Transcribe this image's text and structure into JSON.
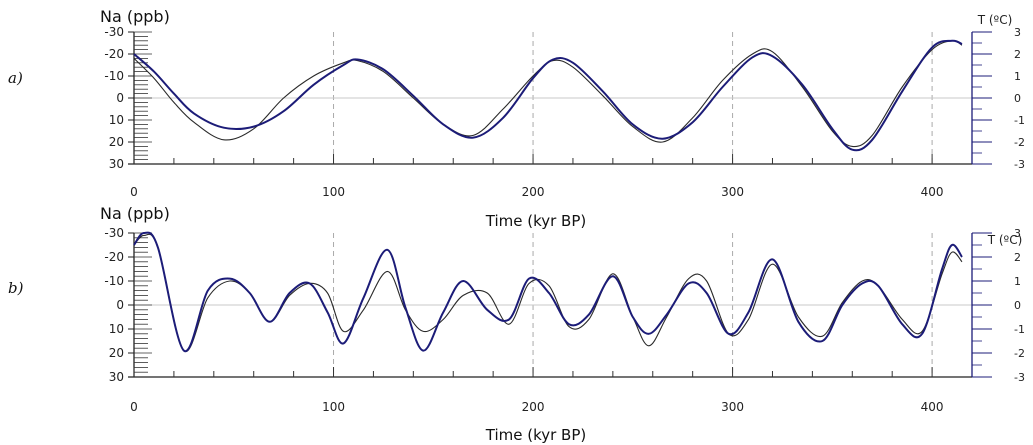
{
  "chart_data": [
    {
      "type": "line",
      "panel_label": "a)",
      "xlabel": "Time (kyr BP)",
      "ylabel_left": "Na (ppb)",
      "ylabel_right": "T (ºC)",
      "xlim": [
        0,
        420
      ],
      "ylim_left": [
        30,
        -30
      ],
      "ylim_right": [
        -3,
        3
      ],
      "left_ticks": [
        "-30",
        "-20",
        "-10",
        "0",
        "10",
        "20",
        "30"
      ],
      "right_ticks": [
        "3",
        "2",
        "1",
        "0",
        "-1",
        "-2",
        "-3"
      ],
      "x_ticks": [
        "0",
        "100",
        "200",
        "300",
        "400"
      ],
      "colors": {
        "na": "#2a2a2a",
        "temp": "#1c1c78",
        "grid": "#aaaaaa"
      },
      "series": [
        {
          "axis": "left",
          "color": "#2a2a2a",
          "x": [
            0,
            10,
            20,
            30,
            45,
            60,
            75,
            90,
            105,
            112,
            125,
            140,
            155,
            170,
            185,
            200,
            210,
            220,
            235,
            250,
            265,
            280,
            295,
            310,
            320,
            335,
            350,
            360,
            370,
            385,
            400,
            410,
            415
          ],
          "y": [
            -18,
            -9,
            2,
            11,
            19,
            14,
            0,
            -10,
            -16,
            -17,
            -12,
            0,
            12,
            17,
            5,
            -10,
            -17,
            -14,
            -1,
            13,
            20,
            9,
            -8,
            -20,
            -21,
            -5,
            15,
            22,
            17,
            -5,
            -22,
            -26,
            -24
          ]
        },
        {
          "axis": "right",
          "color": "#1c1c78",
          "x": [
            0,
            10,
            20,
            30,
            45,
            60,
            75,
            90,
            105,
            112,
            125,
            140,
            155,
            170,
            185,
            200,
            210,
            220,
            235,
            250,
            265,
            280,
            295,
            310,
            320,
            335,
            350,
            360,
            370,
            385,
            400,
            410,
            415
          ],
          "y": [
            2.0,
            1.2,
            0.2,
            -0.7,
            -1.35,
            -1.3,
            -0.6,
            0.6,
            1.5,
            1.75,
            1.3,
            0.1,
            -1.2,
            -1.8,
            -0.9,
            0.9,
            1.75,
            1.6,
            0.3,
            -1.2,
            -1.85,
            -1.1,
            0.5,
            1.85,
            1.9,
            0.6,
            -1.4,
            -2.35,
            -1.9,
            0.3,
            2.3,
            2.6,
            2.45
          ]
        }
      ]
    },
    {
      "type": "line",
      "panel_label": "b)",
      "xlabel": "Time (kyr BP)",
      "ylabel_left": "Na (ppb)",
      "ylabel_right": "T (ºC)",
      "xlim": [
        0,
        420
      ],
      "ylim_left": [
        30,
        -30
      ],
      "ylim_right": [
        -3,
        3
      ],
      "left_ticks": [
        "-30",
        "-20",
        "-10",
        "0",
        "10",
        "20",
        "30"
      ],
      "right_ticks": [
        "3",
        "2",
        "1",
        "0",
        "-1",
        "-2",
        "-3"
      ],
      "x_ticks": [
        "0",
        "100",
        "200",
        "300",
        "400"
      ],
      "colors": {
        "na": "#2a2a2a",
        "temp": "#1c1c78",
        "grid": "#aaaaaa"
      },
      "series": [
        {
          "axis": "left",
          "color": "#2a2a2a",
          "x": [
            0,
            5,
            12,
            25,
            37,
            48,
            58,
            68,
            78,
            88,
            97,
            105,
            115,
            127,
            136,
            145,
            155,
            165,
            177,
            188,
            198,
            208,
            218,
            228,
            240,
            250,
            258,
            267,
            278,
            287,
            298,
            308,
            320,
            333,
            345,
            355,
            365,
            373,
            385,
            395,
            405,
            410,
            415
          ],
          "y": [
            -25,
            -29,
            -24,
            19,
            -3,
            -10,
            -5,
            7,
            -4,
            -9,
            -5,
            11,
            2,
            -14,
            2,
            11,
            6,
            -4,
            -5,
            8,
            -9,
            -8,
            9,
            6,
            -13,
            5,
            17,
            5,
            -11,
            -10,
            12,
            6,
            -17,
            5,
            13,
            -1,
            -10,
            -8,
            6,
            11,
            -13,
            -22,
            -18
          ]
        },
        {
          "axis": "right",
          "color": "#1c1c78",
          "x": [
            0,
            5,
            12,
            25,
            37,
            48,
            58,
            68,
            78,
            88,
            97,
            105,
            115,
            127,
            136,
            145,
            155,
            165,
            177,
            188,
            198,
            208,
            218,
            228,
            240,
            250,
            258,
            267,
            278,
            287,
            298,
            308,
            320,
            333,
            345,
            355,
            365,
            373,
            385,
            395,
            405,
            410,
            415
          ],
          "y": [
            2.5,
            3.0,
            2.4,
            -1.9,
            0.6,
            1.1,
            0.5,
            -0.7,
            0.5,
            0.9,
            -0.3,
            -1.6,
            0.3,
            2.3,
            -0.1,
            -1.9,
            -0.3,
            1.0,
            -0.2,
            -0.6,
            1.1,
            0.5,
            -0.8,
            -0.4,
            1.2,
            -0.5,
            -1.2,
            -0.4,
            0.9,
            0.5,
            -1.2,
            -0.3,
            1.9,
            -0.7,
            -1.5,
            0.0,
            0.9,
            0.8,
            -0.8,
            -1.2,
            1.5,
            2.5,
            2.0
          ]
        }
      ]
    }
  ]
}
